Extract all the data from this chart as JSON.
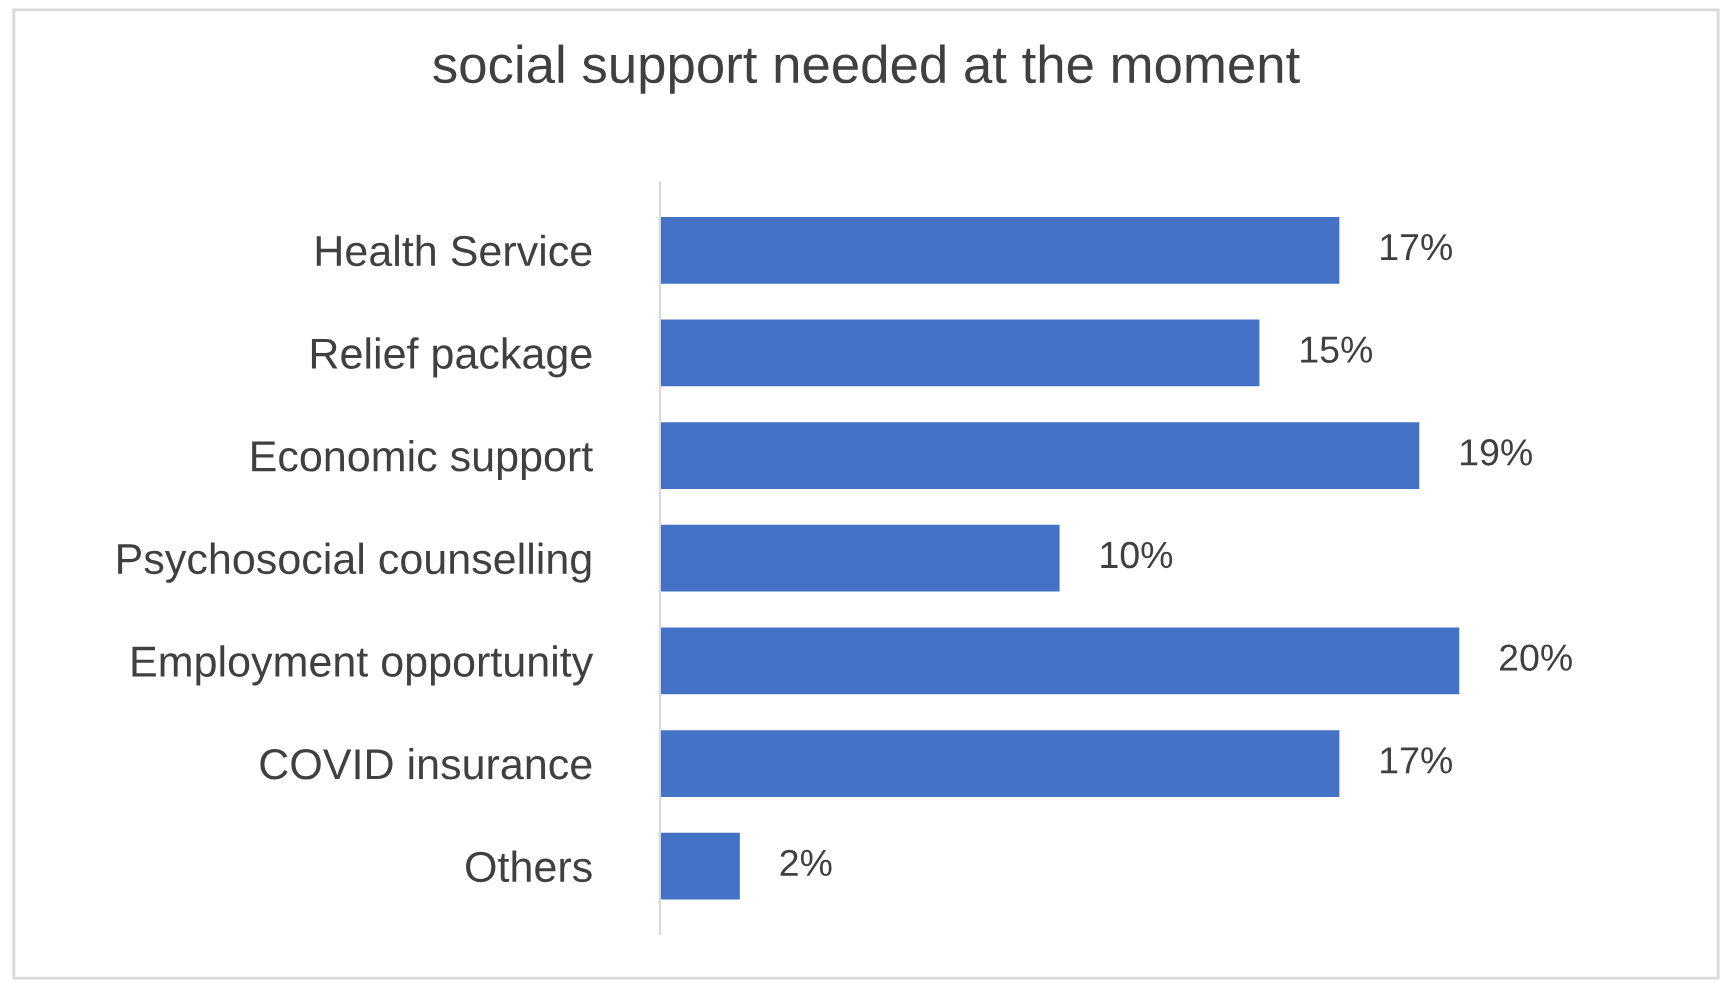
{
  "chart_data": {
    "type": "bar",
    "orientation": "horizontal",
    "title": "social support needed at the moment",
    "categories": [
      "Health Service",
      "Relief package",
      "Economic support",
      "Psychosocial counselling",
      "Employment opportunity",
      "COVID insurance",
      "Others"
    ],
    "values": [
      17,
      15,
      19,
      10,
      20,
      17,
      2
    ],
    "value_labels": [
      "17%",
      "15%",
      "19%",
      "10%",
      "20%",
      "17%",
      "2%"
    ],
    "color": "#4472c4",
    "grid": false,
    "legend": false
  }
}
